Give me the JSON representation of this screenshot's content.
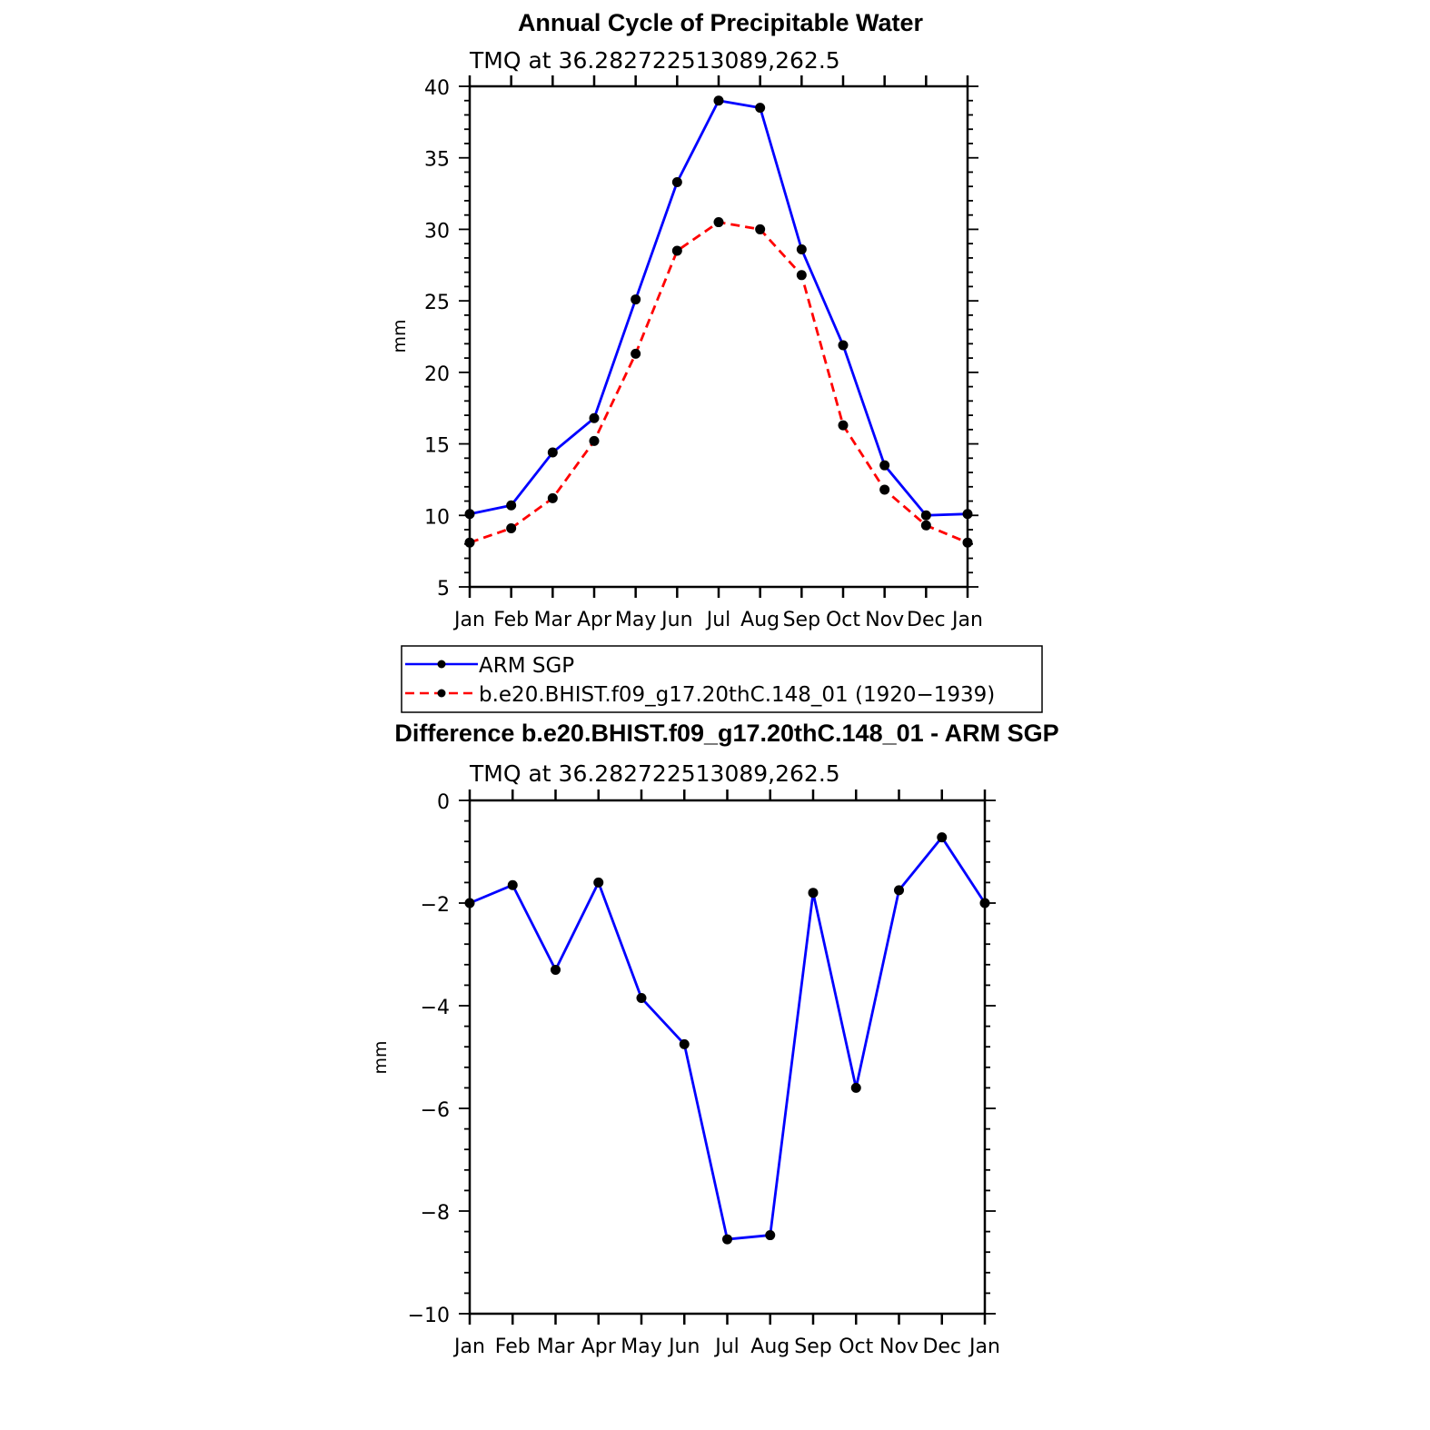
{
  "chart_data": [
    {
      "type": "line",
      "title": "Annual Cycle of Precipitable Water",
      "subtitle": "TMQ at 36.282722513089,262.5",
      "xlabel": "",
      "ylabel": "mm",
      "categories": [
        "Jan",
        "Feb",
        "Mar",
        "Apr",
        "May",
        "Jun",
        "Jul",
        "Aug",
        "Sep",
        "Oct",
        "Nov",
        "Dec",
        "Jan"
      ],
      "ylim": [
        5,
        40
      ],
      "yticks": [
        5,
        10,
        15,
        20,
        25,
        30,
        35,
        40
      ],
      "series": [
        {
          "name": "ARM SGP",
          "color": "#0000ff",
          "style": "solid",
          "values": [
            10.1,
            10.7,
            14.4,
            16.8,
            25.1,
            33.3,
            39.0,
            38.5,
            28.6,
            21.9,
            13.5,
            10.0,
            10.1
          ]
        },
        {
          "name": "b.e20.BHIST.f09_g17.20thC.148_01 (1920−1939)",
          "color": "#ff0000",
          "style": "dashed",
          "values": [
            8.1,
            9.1,
            11.2,
            15.2,
            21.3,
            28.5,
            30.5,
            30.0,
            26.8,
            16.3,
            11.8,
            9.3,
            8.1
          ]
        }
      ],
      "legend_position": "below"
    },
    {
      "type": "line",
      "title": "Difference b.e20.BHIST.f09_g17.20thC.148_01 - ARM SGP",
      "subtitle": "TMQ at 36.282722513089,262.5",
      "xlabel": "",
      "ylabel": "mm",
      "categories": [
        "Jan",
        "Feb",
        "Mar",
        "Apr",
        "May",
        "Jun",
        "Jul",
        "Aug",
        "Sep",
        "Oct",
        "Nov",
        "Dec",
        "Jan"
      ],
      "ylim": [
        -10,
        0
      ],
      "yticks": [
        0,
        -2,
        -4,
        -6,
        -8,
        -10
      ],
      "ytick_labels": [
        "0",
        "−2",
        "−4",
        "−6",
        "−8",
        "−10"
      ],
      "series": [
        {
          "name": "Difference",
          "color": "#0000ff",
          "style": "solid",
          "values": [
            -2.0,
            -1.65,
            -3.3,
            -1.6,
            -3.85,
            -4.75,
            -8.55,
            -8.47,
            -1.8,
            -5.6,
            -1.75,
            -0.72,
            -2.0
          ]
        }
      ]
    }
  ]
}
